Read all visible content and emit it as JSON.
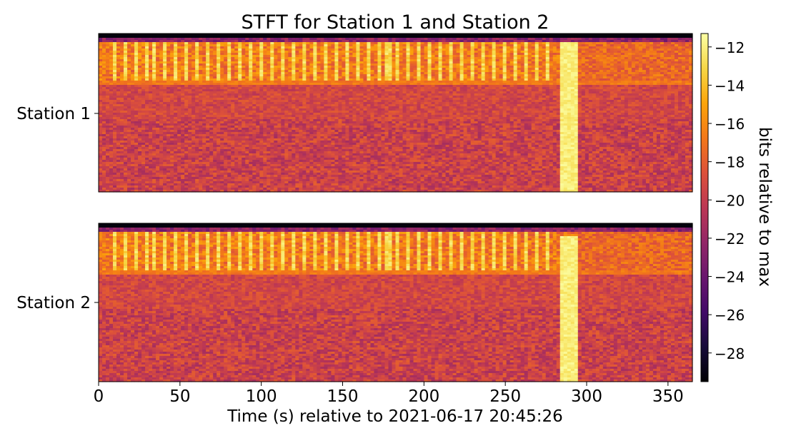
{
  "chart_data": {
    "type": "heatmap",
    "title": "STFT for Station 1 and Station 2",
    "xlabel": "Time (s) relative to 2021-06-17 20:45:26",
    "xlim": [
      0,
      365
    ],
    "x_ticks": [
      0,
      50,
      100,
      150,
      200,
      250,
      300,
      350
    ],
    "x_tick_labels": [
      "0",
      "50",
      "100",
      "150",
      "200",
      "250",
      "300",
      "350"
    ],
    "panels": [
      {
        "name": "Station 1",
        "ytick_label": "Station 1"
      },
      {
        "name": "Station 2",
        "ytick_label": "Station 2"
      }
    ],
    "colorbar": {
      "label": "bits relative to max",
      "colormap": "inferno",
      "range": [
        -29.5,
        -11.3
      ],
      "ticks": [
        -12,
        -14,
        -16,
        -18,
        -20,
        -22,
        -24,
        -26,
        -28
      ],
      "tick_labels": [
        "−12",
        "−14",
        "−16",
        "−18",
        "−20",
        "−22",
        "−24",
        "−26",
        "−28"
      ]
    },
    "features": {
      "periodic_pulses": {
        "start_s": 8,
        "end_s": 278,
        "period_s": 6.5,
        "level": -12
      },
      "band_line_level": -16,
      "broadband_burst": {
        "start_s": 283,
        "end_s": 295,
        "level": -11.5
      },
      "background_level_high_freq": -18,
      "background_level_low_freq": -19.5
    }
  }
}
